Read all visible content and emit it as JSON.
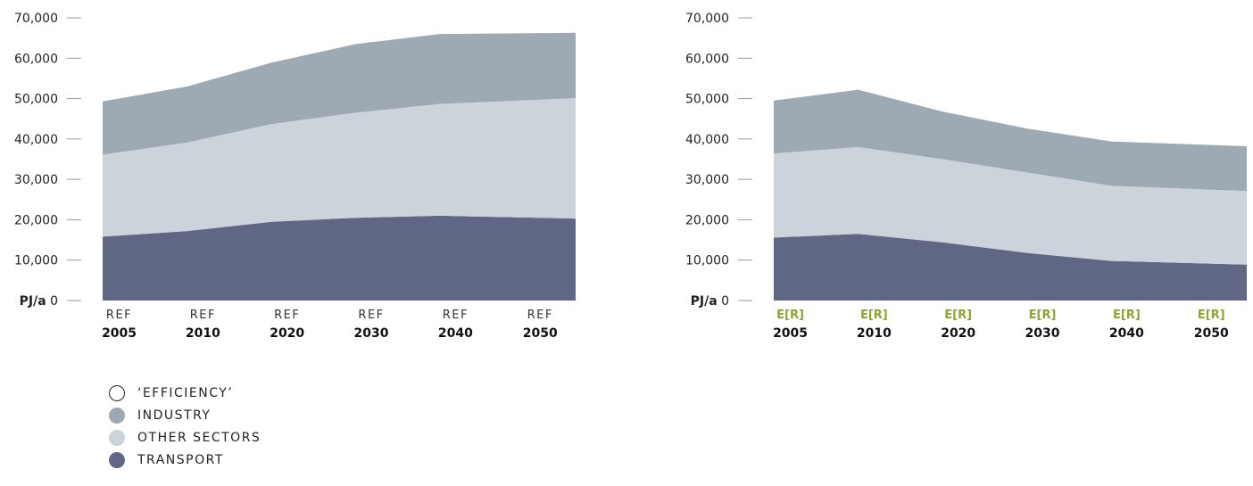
{
  "chart_data": [
    {
      "type": "area",
      "stacked": true,
      "scenario_label": "REF",
      "years": [
        "2005",
        "2010",
        "2020",
        "2030",
        "2040",
        "2050"
      ],
      "unit_label": "PJ/a",
      "ylim": [
        0,
        70000
      ],
      "yticks": [
        "70,000",
        "60,000",
        "50,000",
        "40,000",
        "30,000",
        "20,000",
        "10,000",
        "0"
      ],
      "series": [
        {
          "name": "TRANSPORT",
          "values": [
            15800,
            17200,
            19500,
            20500,
            21000,
            20300
          ]
        },
        {
          "name": "OTHER SECTORS",
          "values": [
            20300,
            21900,
            24200,
            26000,
            27700,
            29800
          ]
        },
        {
          "name": "INDUSTRY",
          "values": [
            13200,
            13900,
            15200,
            17000,
            17300,
            16200
          ]
        }
      ]
    },
    {
      "type": "area",
      "stacked": true,
      "scenario_label": "E[R]",
      "years": [
        "2005",
        "2010",
        "2020",
        "2030",
        "2040",
        "2050"
      ],
      "unit_label": "PJ/a",
      "ylim": [
        0,
        70000
      ],
      "yticks": [
        "70,000",
        "60,000",
        "50,000",
        "40,000",
        "30,000",
        "20,000",
        "10,000",
        "0"
      ],
      "series": [
        {
          "name": "TRANSPORT",
          "values": [
            15600,
            16500,
            14400,
            11800,
            9800,
            8900
          ]
        },
        {
          "name": "OTHER SECTORS",
          "values": [
            20800,
            21500,
            20600,
            19900,
            18600,
            18200
          ]
        },
        {
          "name": "INDUSTRY",
          "values": [
            13100,
            14200,
            11800,
            10900,
            11000,
            11100
          ]
        }
      ]
    }
  ],
  "colors": {
    "transport": "#5f6784",
    "other_sectors": "#cdd3da",
    "industry": "#9daab3",
    "efficiency": "#ffffff",
    "scenario_green": "#8fa32c"
  },
  "legend": [
    {
      "label": "‘EFFICIENCY’",
      "color": "#ffffff"
    },
    {
      "label": "INDUSTRY",
      "color": "#9daab3"
    },
    {
      "label": "OTHER SECTORS",
      "color": "#cdd3da"
    },
    {
      "label": "TRANSPORT",
      "color": "#5f6784"
    }
  ]
}
